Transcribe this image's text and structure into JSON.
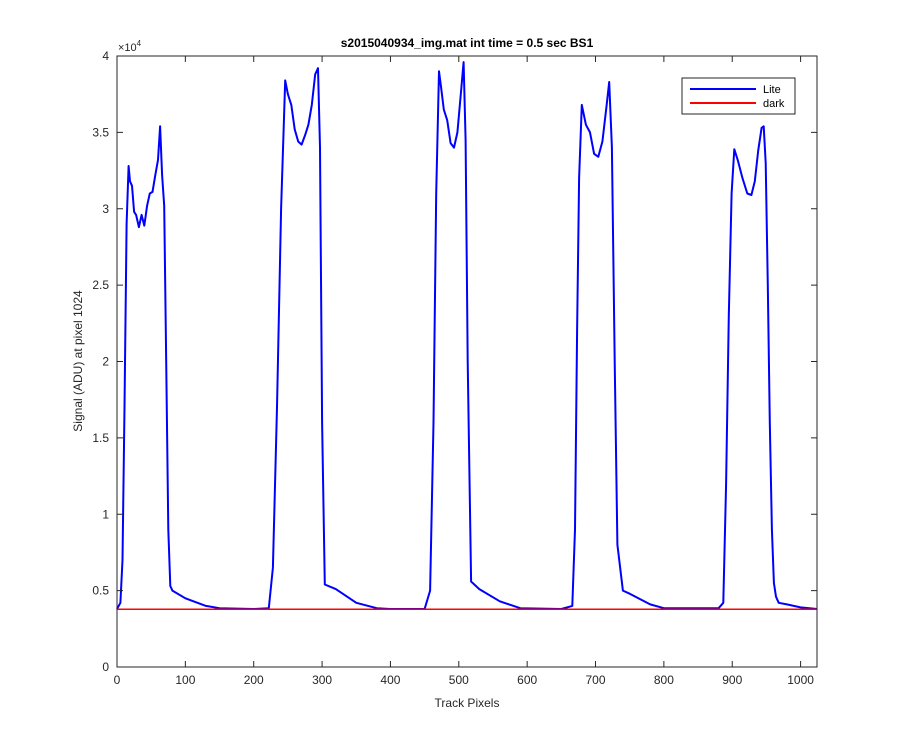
{
  "chart_data": {
    "type": "line",
    "title": "s2015040934_img.mat int time = 0.5 sec   BS1",
    "xlabel": "Track Pixels",
    "ylabel": "Signal (ADU) at pixel 1024",
    "y_exponent_label": "×10",
    "y_exponent_power": "4",
    "xlim": [
      0,
      1024
    ],
    "ylim": [
      0,
      40000
    ],
    "xticks": [
      0,
      100,
      200,
      300,
      400,
      500,
      600,
      700,
      800,
      900,
      1000
    ],
    "xtick_labels": [
      "0",
      "100",
      "200",
      "300",
      "400",
      "500",
      "600",
      "700",
      "800",
      "900",
      "1000"
    ],
    "yticks": [
      0,
      5000,
      10000,
      15000,
      20000,
      25000,
      30000,
      35000,
      40000
    ],
    "ytick_labels": [
      "0",
      "0.5",
      "1",
      "1.5",
      "2",
      "2.5",
      "3",
      "3.5",
      "4"
    ],
    "grid": false,
    "legend_position": "top-right",
    "series": [
      {
        "name": "Lite",
        "color": "#0000ff",
        "x": [
          0,
          5,
          8,
          11,
          14,
          17,
          19,
          22,
          25,
          28,
          32,
          36,
          40,
          44,
          48,
          52,
          56,
          60,
          63,
          66,
          69,
          72,
          75,
          78,
          81,
          100,
          130,
          150,
          200,
          222,
          228,
          234,
          240,
          246,
          250,
          255,
          260,
          265,
          270,
          275,
          280,
          285,
          290,
          294,
          297,
          300,
          304,
          320,
          350,
          380,
          400,
          450,
          458,
          463,
          467,
          471,
          474,
          478,
          483,
          488,
          493,
          498,
          503,
          507,
          510,
          513,
          518,
          530,
          560,
          590,
          650,
          666,
          670,
          673,
          676,
          680,
          686,
          692,
          698,
          704,
          710,
          716,
          720,
          724,
          728,
          732,
          740,
          750,
          780,
          800,
          880,
          887,
          891,
          895,
          899,
          903,
          908,
          915,
          922,
          928,
          933,
          938,
          943,
          946,
          949,
          952,
          955,
          958,
          961,
          964,
          968,
          980,
          1000,
          1024
        ],
        "y": [
          3800,
          4200,
          7000,
          17000,
          29000,
          32800,
          31800,
          31500,
          29800,
          29600,
          28800,
          29600,
          28900,
          30200,
          31000,
          31100,
          32200,
          33200,
          35400,
          32200,
          30200,
          20000,
          9000,
          5300,
          5000,
          4500,
          4000,
          3850,
          3800,
          3850,
          6500,
          17000,
          30000,
          38400,
          37500,
          36800,
          35200,
          34400,
          34200,
          34800,
          35500,
          36800,
          38800,
          39200,
          34000,
          16000,
          5400,
          5100,
          4200,
          3850,
          3800,
          3800,
          5000,
          16000,
          31000,
          39000,
          38000,
          36500,
          35800,
          34300,
          34000,
          35000,
          37500,
          39600,
          34500,
          20000,
          5600,
          5100,
          4300,
          3850,
          3800,
          4000,
          9000,
          22000,
          32000,
          36800,
          35500,
          35000,
          33600,
          33400,
          34400,
          36700,
          38300,
          34000,
          20000,
          8000,
          5000,
          4800,
          4100,
          3850,
          3850,
          4200,
          12000,
          23000,
          31000,
          33900,
          33200,
          32000,
          31000,
          30900,
          31800,
          33800,
          35300,
          35400,
          33000,
          25000,
          16000,
          9000,
          5500,
          4600,
          4200,
          4100,
          3900,
          3800
        ]
      },
      {
        "name": "dark",
        "color": "#ff0000",
        "x": [
          0,
          1024
        ],
        "y": [
          3780,
          3780
        ]
      }
    ]
  }
}
